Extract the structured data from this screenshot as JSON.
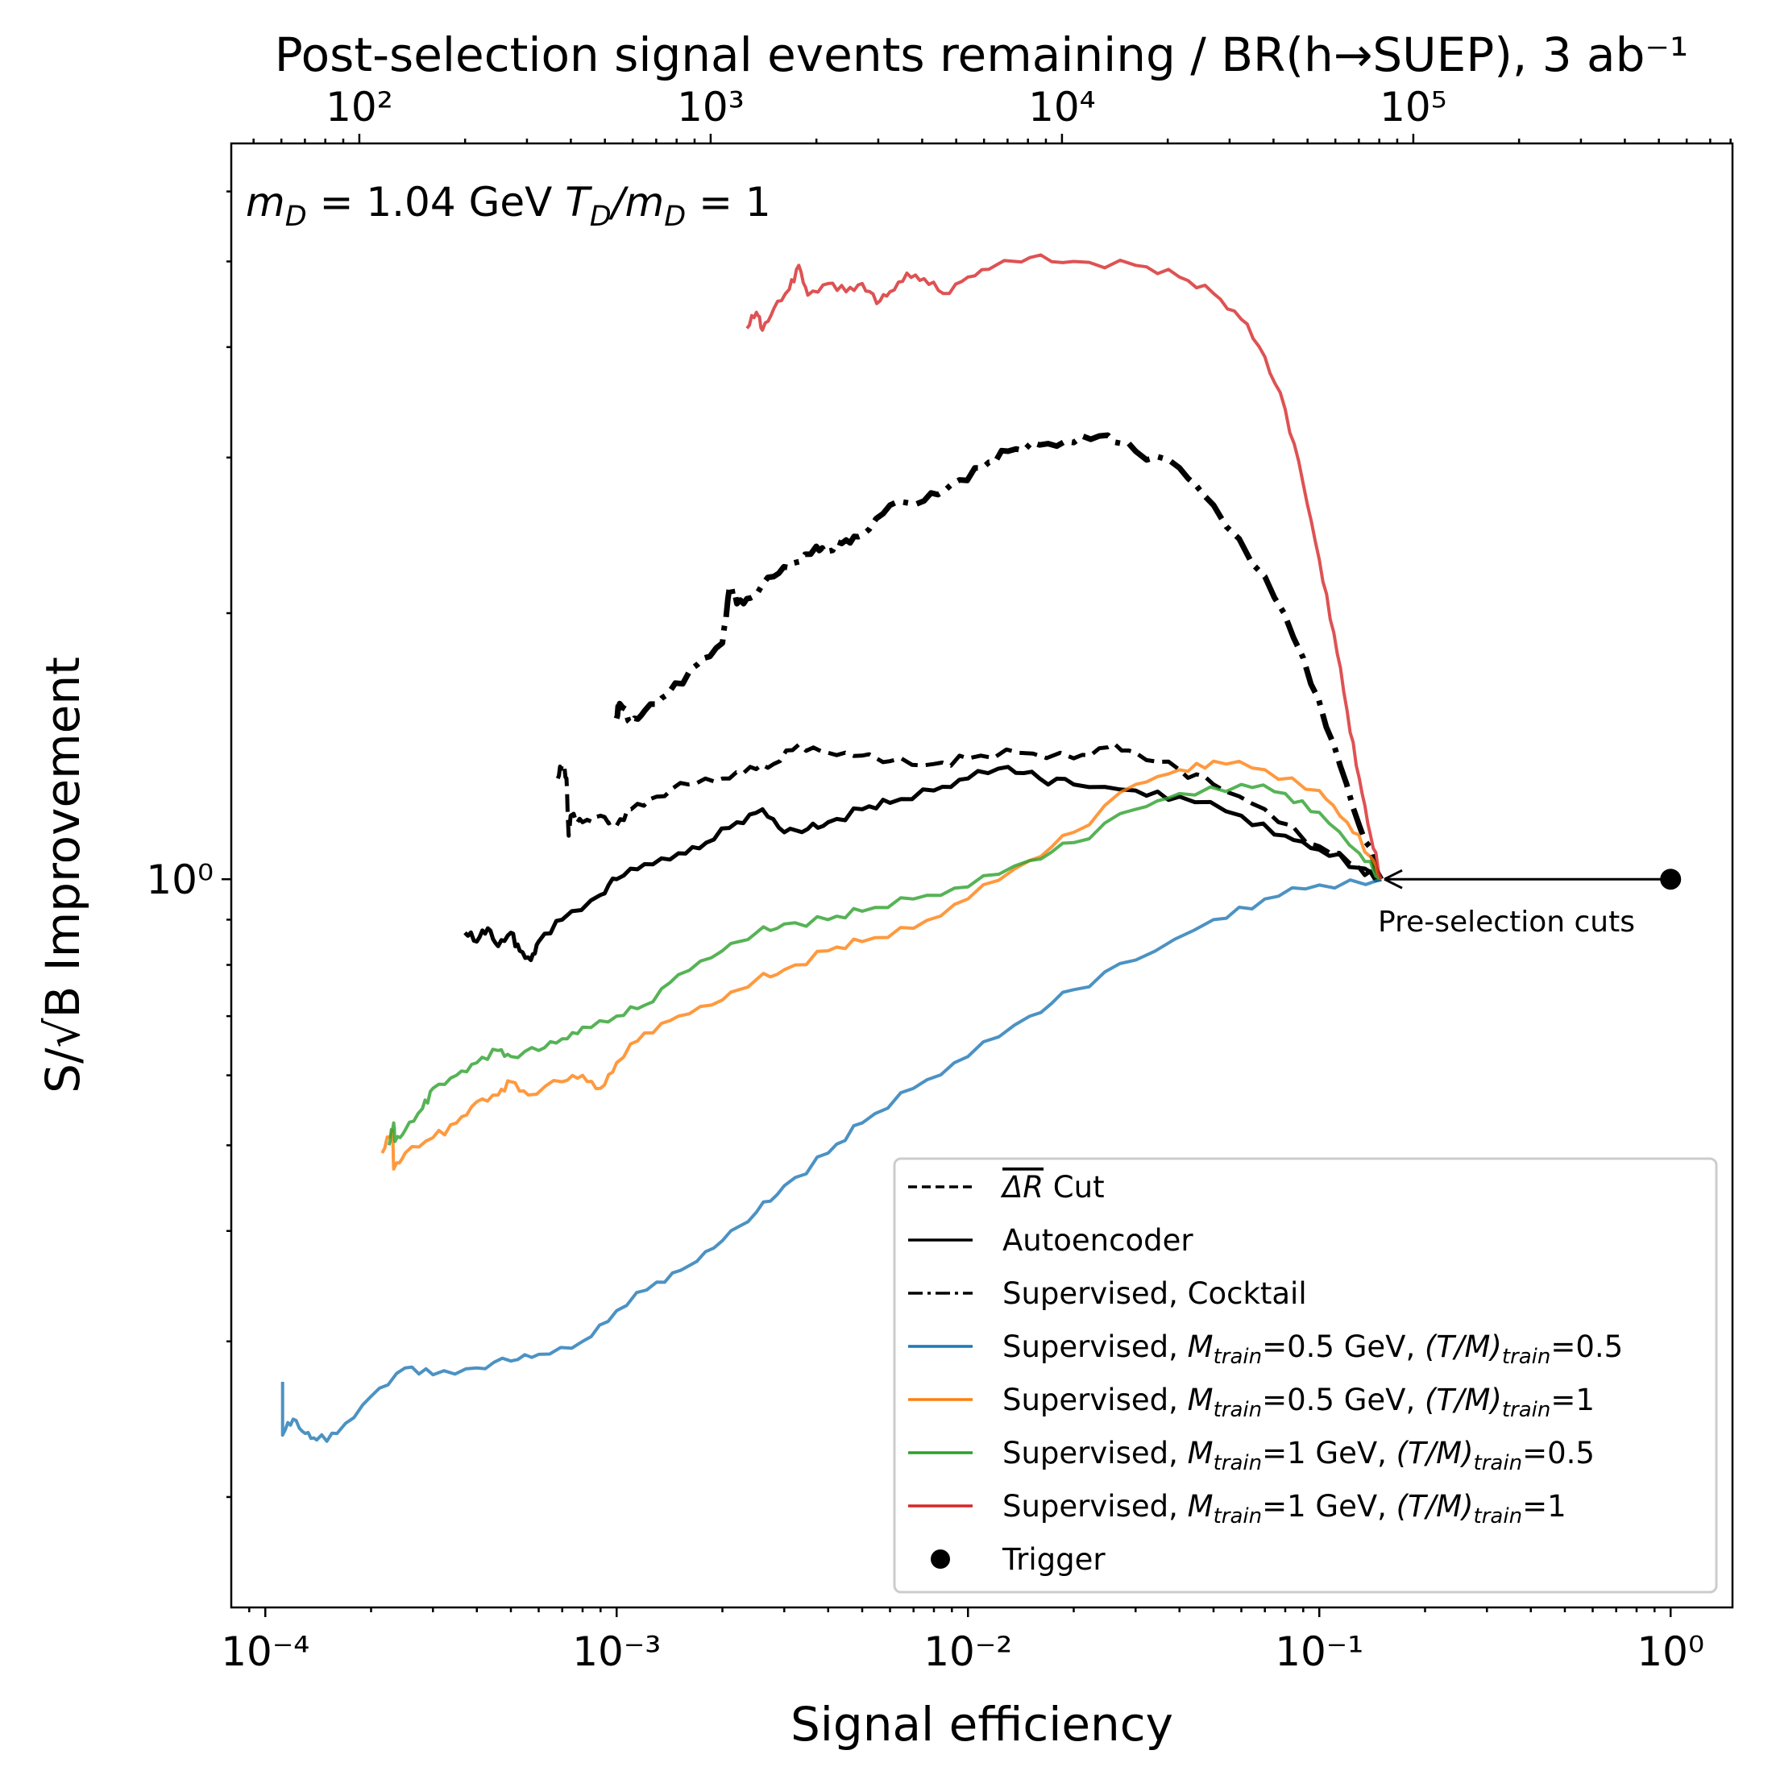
{
  "chart_data": {
    "type": "line",
    "title": "",
    "xlabel": "Signal efficiency",
    "ylabel": "S/√B Improvement",
    "top_xlabel": "Post-selection signal events remaining / BR(h→SUEP), 3 ab⁻¹",
    "x_scale": "log",
    "y_scale": "log",
    "xlim": [
      8e-05,
      1.5
    ],
    "ylim": [
      0.15,
      6.8
    ],
    "x_ticks": [
      {
        "value": 0.0001,
        "label": "10⁻⁴"
      },
      {
        "value": 0.001,
        "label": "10⁻³"
      },
      {
        "value": 0.01,
        "label": "10⁻²"
      },
      {
        "value": 0.1,
        "label": "10⁻¹"
      },
      {
        "value": 1,
        "label": "10⁰"
      }
    ],
    "y_ticks": [
      {
        "value": 1,
        "label": "10⁰"
      }
    ],
    "top_ticks": [
      {
        "events": 100,
        "label": "10²"
      },
      {
        "events": 1000,
        "label": "10³"
      },
      {
        "events": 10000,
        "label": "10⁴"
      },
      {
        "events": 100000,
        "label": "10⁵"
      }
    ],
    "top_axis_events_at_efficiency_1": 540000,
    "annotation_model": {
      "pre": "m",
      "pre_sub": "D",
      "mid": " = 1.04 GeV ",
      "t": "T",
      "t_sub": "D",
      "slash": "/m",
      "slash_sub": "D",
      "tail": " = 1"
    },
    "annotation_arrow": {
      "text": "Pre-selection cuts",
      "from": [
        1.0,
        1.0
      ],
      "to": [
        0.15,
        1.0
      ]
    },
    "legend_position": "lower-right",
    "legend": [
      {
        "key": "dr",
        "style": "dashed",
        "color": "#000000",
        "pre": "ΔR",
        "text": " Cut"
      },
      {
        "key": "ae",
        "style": "solid",
        "color": "#000000",
        "text": "Autoencoder"
      },
      {
        "key": "cocktail",
        "style": "dashdot",
        "color": "#000000",
        "text": "Supervised, Cocktail"
      },
      {
        "key": "blue",
        "style": "solid",
        "color": "#1f77b4",
        "a": "Supervised, ",
        "m": "M",
        "ms": "train",
        "b": "=0.5 GeV, ",
        "t": "(T/M)",
        "ts": "train",
        "c": "=0.5"
      },
      {
        "key": "orange",
        "style": "solid",
        "color": "#ff7f0e",
        "a": "Supervised, ",
        "m": "M",
        "ms": "train",
        "b": "=0.5 GeV, ",
        "t": "(T/M)",
        "ts": "train",
        "c": "=1"
      },
      {
        "key": "green",
        "style": "solid",
        "color": "#2ca02c",
        "a": "Supervised, ",
        "m": "M",
        "ms": "train",
        "b": "=1 GeV, ",
        "t": "(T/M)",
        "ts": "train",
        "c": "=0.5"
      },
      {
        "key": "red",
        "style": "solid",
        "color": "#d62728",
        "a": "Supervised, ",
        "m": "M",
        "ms": "train",
        "b": "=1 GeV, ",
        "t": "(T/M)",
        "ts": "train",
        "c": "=1"
      },
      {
        "key": "trigger",
        "style": "marker",
        "color": "#000000",
        "text": "Trigger"
      }
    ],
    "series": [
      {
        "key": "dr",
        "name": "ΔR Cut",
        "color": "#000000",
        "style": "dashed",
        "width": 5,
        "points": [
          [
            0.00068,
            1.3
          ],
          [
            0.0007,
            1.35
          ],
          [
            0.00072,
            1.3
          ],
          [
            0.00073,
            1.12
          ],
          [
            0.00074,
            1.18
          ],
          [
            0.0008,
            1.16
          ],
          [
            0.0009,
            1.18
          ],
          [
            0.001,
            1.15
          ],
          [
            0.0011,
            1.2
          ],
          [
            0.0013,
            1.24
          ],
          [
            0.0016,
            1.28
          ],
          [
            0.002,
            1.3
          ],
          [
            0.0024,
            1.34
          ],
          [
            0.0028,
            1.35
          ],
          [
            0.0033,
            1.42
          ],
          [
            0.004,
            1.39
          ],
          [
            0.005,
            1.38
          ],
          [
            0.006,
            1.36
          ],
          [
            0.008,
            1.35
          ],
          [
            0.01,
            1.37
          ],
          [
            0.014,
            1.39
          ],
          [
            0.02,
            1.37
          ],
          [
            0.025,
            1.41
          ],
          [
            0.03,
            1.39
          ],
          [
            0.04,
            1.33
          ],
          [
            0.05,
            1.28
          ],
          [
            0.07,
            1.2
          ],
          [
            0.1,
            1.09
          ],
          [
            0.13,
            1.03
          ],
          [
            0.15,
            1.0
          ]
        ]
      },
      {
        "key": "ae",
        "name": "Autoencoder",
        "color": "#000000",
        "style": "solid",
        "width": 5,
        "points": [
          [
            0.00037,
            0.87
          ],
          [
            0.0004,
            0.85
          ],
          [
            0.00043,
            0.88
          ],
          [
            0.00046,
            0.84
          ],
          [
            0.0005,
            0.87
          ],
          [
            0.00053,
            0.83
          ],
          [
            0.00057,
            0.81
          ],
          [
            0.0006,
            0.85
          ],
          [
            0.0007,
            0.9
          ],
          [
            0.0009,
            0.96
          ],
          [
            0.001,
            1.0
          ],
          [
            0.0012,
            1.04
          ],
          [
            0.0015,
            1.07
          ],
          [
            0.0018,
            1.1
          ],
          [
            0.0022,
            1.16
          ],
          [
            0.0026,
            1.2
          ],
          [
            0.003,
            1.13
          ],
          [
            0.0035,
            1.14
          ],
          [
            0.004,
            1.16
          ],
          [
            0.005,
            1.2
          ],
          [
            0.006,
            1.22
          ],
          [
            0.008,
            1.26
          ],
          [
            0.01,
            1.3
          ],
          [
            0.013,
            1.34
          ],
          [
            0.016,
            1.3
          ],
          [
            0.02,
            1.28
          ],
          [
            0.03,
            1.26
          ],
          [
            0.04,
            1.24
          ],
          [
            0.06,
            1.18
          ],
          [
            0.08,
            1.12
          ],
          [
            0.1,
            1.08
          ],
          [
            0.13,
            1.03
          ],
          [
            0.15,
            1.0
          ]
        ]
      },
      {
        "key": "cocktail",
        "name": "Supervised, Cocktail",
        "color": "#000000",
        "style": "dashdot",
        "width": 7,
        "points": [
          [
            0.001,
            1.52
          ],
          [
            0.00102,
            1.58
          ],
          [
            0.0011,
            1.5
          ],
          [
            0.0012,
            1.55
          ],
          [
            0.0014,
            1.62
          ],
          [
            0.0017,
            1.75
          ],
          [
            0.002,
            1.85
          ],
          [
            0.0021,
            2.15
          ],
          [
            0.0022,
            2.05
          ],
          [
            0.0024,
            2.08
          ],
          [
            0.0028,
            2.2
          ],
          [
            0.0032,
            2.28
          ],
          [
            0.0037,
            2.38
          ],
          [
            0.004,
            2.35
          ],
          [
            0.0045,
            2.42
          ],
          [
            0.005,
            2.45
          ],
          [
            0.006,
            2.65
          ],
          [
            0.0075,
            2.68
          ],
          [
            0.009,
            2.8
          ],
          [
            0.011,
            2.92
          ],
          [
            0.013,
            3.05
          ],
          [
            0.016,
            3.1
          ],
          [
            0.02,
            3.12
          ],
          [
            0.025,
            3.18
          ],
          [
            0.03,
            3.05
          ],
          [
            0.04,
            2.92
          ],
          [
            0.05,
            2.65
          ],
          [
            0.07,
            2.2
          ],
          [
            0.09,
            1.78
          ],
          [
            0.11,
            1.42
          ],
          [
            0.13,
            1.15
          ],
          [
            0.15,
            1.0
          ]
        ]
      },
      {
        "key": "blue",
        "name": "Supervised, Mtrain=0.5 GeV, (T/M)train=0.5",
        "color": "#1f77b4",
        "style": "solid",
        "width": 4,
        "opacity": 0.8,
        "points": [
          [
            0.000112,
            0.27
          ],
          [
            0.000112,
            0.235
          ],
          [
            0.00012,
            0.245
          ],
          [
            0.00013,
            0.236
          ],
          [
            0.00014,
            0.232
          ],
          [
            0.00016,
            0.236
          ],
          [
            0.0002,
            0.26
          ],
          [
            0.00025,
            0.28
          ],
          [
            0.0003,
            0.275
          ],
          [
            0.0004,
            0.28
          ],
          [
            0.0005,
            0.285
          ],
          [
            0.0006,
            0.29
          ],
          [
            0.0008,
            0.3
          ],
          [
            0.001,
            0.325
          ],
          [
            0.0013,
            0.35
          ],
          [
            0.0016,
            0.365
          ],
          [
            0.002,
            0.39
          ],
          [
            0.0025,
            0.42
          ],
          [
            0.003,
            0.45
          ],
          [
            0.004,
            0.49
          ],
          [
            0.005,
            0.53
          ],
          [
            0.007,
            0.58
          ],
          [
            0.01,
            0.63
          ],
          [
            0.015,
            0.7
          ],
          [
            0.02,
            0.75
          ],
          [
            0.03,
            0.81
          ],
          [
            0.05,
            0.9
          ],
          [
            0.07,
            0.95
          ],
          [
            0.1,
            0.985
          ],
          [
            0.15,
            1.0
          ]
        ]
      },
      {
        "key": "orange",
        "name": "Supervised, Mtrain=0.5 GeV, (T/M)train=1",
        "color": "#ff7f0e",
        "style": "solid",
        "width": 4,
        "opacity": 0.8,
        "points": [
          [
            0.000215,
            0.49
          ],
          [
            0.00023,
            0.52
          ],
          [
            0.000232,
            0.47
          ],
          [
            0.00025,
            0.49
          ],
          [
            0.0003,
            0.51
          ],
          [
            0.00035,
            0.53
          ],
          [
            0.0004,
            0.56
          ],
          [
            0.00046,
            0.57
          ],
          [
            0.0005,
            0.59
          ],
          [
            0.00056,
            0.57
          ],
          [
            0.0007,
            0.59
          ],
          [
            0.0008,
            0.6
          ],
          [
            0.0009,
            0.58
          ],
          [
            0.001,
            0.62
          ],
          [
            0.0012,
            0.67
          ],
          [
            0.0015,
            0.7
          ],
          [
            0.002,
            0.73
          ],
          [
            0.0025,
            0.77
          ],
          [
            0.003,
            0.79
          ],
          [
            0.004,
            0.83
          ],
          [
            0.005,
            0.85
          ],
          [
            0.007,
            0.88
          ],
          [
            0.01,
            0.95
          ],
          [
            0.015,
            1.05
          ],
          [
            0.02,
            1.13
          ],
          [
            0.03,
            1.28
          ],
          [
            0.04,
            1.33
          ],
          [
            0.05,
            1.36
          ],
          [
            0.07,
            1.33
          ],
          [
            0.1,
            1.26
          ],
          [
            0.12,
            1.16
          ],
          [
            0.14,
            1.06
          ],
          [
            0.15,
            1.0
          ]
        ]
      },
      {
        "key": "green",
        "name": "Supervised, Mtrain=1 GeV, (T/M)train=0.5",
        "color": "#2ca02c",
        "style": "solid",
        "width": 4,
        "opacity": 0.8,
        "points": [
          [
            0.000225,
            0.5
          ],
          [
            0.000232,
            0.53
          ],
          [
            0.000234,
            0.505
          ],
          [
            0.00025,
            0.52
          ],
          [
            0.00028,
            0.55
          ],
          [
            0.0003,
            0.58
          ],
          [
            0.00035,
            0.6
          ],
          [
            0.0004,
            0.62
          ],
          [
            0.00046,
            0.64
          ],
          [
            0.0005,
            0.63
          ],
          [
            0.0006,
            0.64
          ],
          [
            0.0007,
            0.66
          ],
          [
            0.0008,
            0.68
          ],
          [
            0.001,
            0.7
          ],
          [
            0.0012,
            0.72
          ],
          [
            0.0015,
            0.78
          ],
          [
            0.002,
            0.83
          ],
          [
            0.0025,
            0.87
          ],
          [
            0.003,
            0.89
          ],
          [
            0.004,
            0.9
          ],
          [
            0.005,
            0.92
          ],
          [
            0.007,
            0.95
          ],
          [
            0.01,
            0.98
          ],
          [
            0.015,
            1.05
          ],
          [
            0.02,
            1.1
          ],
          [
            0.03,
            1.2
          ],
          [
            0.04,
            1.25
          ],
          [
            0.06,
            1.28
          ],
          [
            0.08,
            1.25
          ],
          [
            0.1,
            1.19
          ],
          [
            0.13,
            1.07
          ],
          [
            0.15,
            1.0
          ]
        ]
      },
      {
        "key": "red",
        "name": "Supervised, Mtrain=1 GeV, (T/M)train=1",
        "color": "#d62728",
        "style": "solid",
        "width": 4,
        "opacity": 0.8,
        "points": [
          [
            0.00235,
            4.2
          ],
          [
            0.0025,
            4.38
          ],
          [
            0.0026,
            4.18
          ],
          [
            0.0028,
            4.42
          ],
          [
            0.0031,
            4.65
          ],
          [
            0.0033,
            4.95
          ],
          [
            0.0035,
            4.58
          ],
          [
            0.004,
            4.72
          ],
          [
            0.0045,
            4.62
          ],
          [
            0.005,
            4.72
          ],
          [
            0.0055,
            4.48
          ],
          [
            0.006,
            4.62
          ],
          [
            0.0067,
            4.85
          ],
          [
            0.0075,
            4.78
          ],
          [
            0.0085,
            4.6
          ],
          [
            0.01,
            4.8
          ],
          [
            0.012,
            4.95
          ],
          [
            0.015,
            5.05
          ],
          [
            0.02,
            5.0
          ],
          [
            0.03,
            4.95
          ],
          [
            0.04,
            4.8
          ],
          [
            0.05,
            4.6
          ],
          [
            0.06,
            4.3
          ],
          [
            0.07,
            3.9
          ],
          [
            0.08,
            3.4
          ],
          [
            0.09,
            2.8
          ],
          [
            0.1,
            2.3
          ],
          [
            0.11,
            1.9
          ],
          [
            0.12,
            1.55
          ],
          [
            0.13,
            1.3
          ],
          [
            0.14,
            1.12
          ],
          [
            0.15,
            1.0
          ]
        ]
      }
    ],
    "trigger_point": {
      "x": 1.0,
      "y": 1.0
    }
  }
}
